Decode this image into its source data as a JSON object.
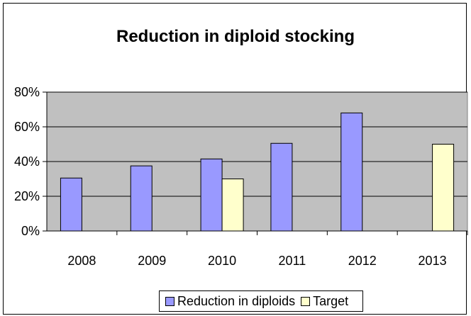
{
  "chart_data": {
    "type": "bar",
    "title": "Reduction in diploid stocking",
    "categories": [
      "2008",
      "2009",
      "2010",
      "2011",
      "2012",
      "2013"
    ],
    "series": [
      {
        "name": "Reduction in diploids",
        "values": [
          30.5,
          37.5,
          41.5,
          50.5,
          68,
          null
        ],
        "color": "#9999ff"
      },
      {
        "name": "Target",
        "values": [
          null,
          null,
          30,
          null,
          null,
          50
        ],
        "color": "#ffffcc"
      }
    ],
    "ylim": [
      0,
      80
    ],
    "yticks": [
      "0%",
      "20%",
      "40%",
      "60%",
      "80%"
    ],
    "grid": true,
    "plot_background": "#c0c0c0",
    "legend_position": "bottom"
  }
}
